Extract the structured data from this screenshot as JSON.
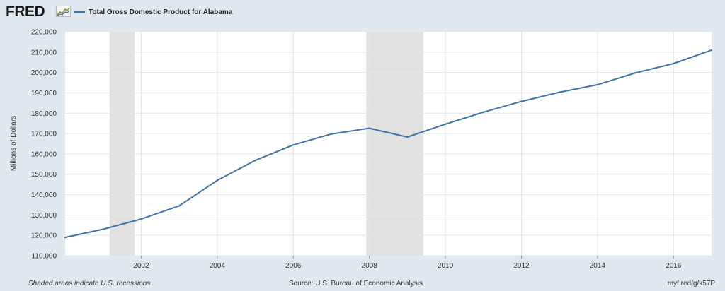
{
  "header": {
    "logo_text": "FRED",
    "logo_icon": "fred-chart-icon",
    "legend_label": "Total Gross Domestic Product for Alabama"
  },
  "footer": {
    "left": "Shaded areas indicate U.S. recessions",
    "center": "Source: U.S. Bureau of Economic Analysis",
    "right": "myf.red/g/k57P"
  },
  "colors": {
    "series": "#4572a7",
    "recession": "#e1e1e1",
    "background": "#e1e9f0",
    "plot": "#ffffff",
    "grid": "#e6e6e6"
  },
  "chart_data": {
    "type": "line",
    "title": "",
    "xlabel": "",
    "ylabel": "Millions of Dollars",
    "xlim": [
      2000,
      2017
    ],
    "ylim": [
      110000,
      220000
    ],
    "yticks": [
      110000,
      120000,
      130000,
      140000,
      150000,
      160000,
      170000,
      180000,
      190000,
      200000,
      210000,
      220000
    ],
    "ytick_labels": [
      "110,000",
      "120,000",
      "130,000",
      "140,000",
      "150,000",
      "160,000",
      "170,000",
      "180,000",
      "190,000",
      "200,000",
      "210,000",
      "220,000"
    ],
    "xticks": [
      2002,
      2004,
      2006,
      2008,
      2010,
      2012,
      2014,
      2016
    ],
    "xtick_labels": [
      "2002",
      "2004",
      "2006",
      "2008",
      "2010",
      "2012",
      "2014",
      "2016"
    ],
    "grid": true,
    "legend": "top-left",
    "recessions": [
      [
        2001.17,
        2001.83
      ],
      [
        2007.92,
        2009.42
      ]
    ],
    "series": [
      {
        "name": "Total Gross Domestic Product for Alabama",
        "x": [
          2000,
          2001,
          2002,
          2003,
          2004,
          2005,
          2006,
          2007,
          2008,
          2009,
          2010,
          2011,
          2012,
          2013,
          2014,
          2015,
          2016,
          2017
        ],
        "y": [
          119000,
          123000,
          128000,
          134500,
          147000,
          156800,
          164400,
          169800,
          172600,
          168300,
          174600,
          180500,
          185800,
          190300,
          194000,
          199800,
          204400,
          211000
        ]
      }
    ]
  }
}
